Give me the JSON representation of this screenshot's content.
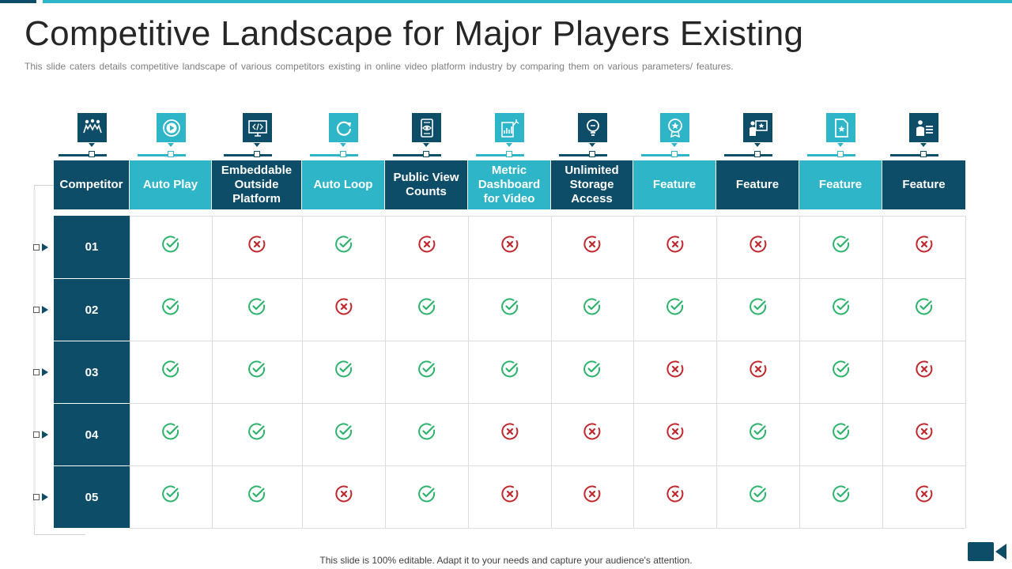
{
  "slide": {
    "title": "Competitive Landscape for Major Players Existing",
    "subtitle": "This slide caters details competitive landscape of various  competitors existing in online video platform industry by comparing them on various parameters/ features.",
    "footer": "This slide is 100% editable. Adapt it to your needs and capture your audience's attention."
  },
  "colors": {
    "dark": "#0e4d68",
    "teal": "#2fb5c8",
    "check": "#2db36b",
    "cross": "#c0282d"
  },
  "table": {
    "headers": [
      {
        "label": "Competitor",
        "icon": "team-icon",
        "tone": "dark"
      },
      {
        "label": "Auto Play",
        "icon": "play-circle-icon",
        "tone": "teal"
      },
      {
        "label": "Embeddable Outside Platform",
        "icon": "code-monitor-icon",
        "tone": "dark"
      },
      {
        "label": "Auto Loop",
        "icon": "refresh-icon",
        "tone": "teal"
      },
      {
        "label": "Public View Counts",
        "icon": "eye-document-icon",
        "tone": "dark"
      },
      {
        "label": "Metric Dashboard for Video",
        "icon": "dashboard-chart-icon",
        "tone": "teal"
      },
      {
        "label": "Unlimited Storage Access",
        "icon": "bulb-storage-icon",
        "tone": "dark"
      },
      {
        "label": "Feature",
        "icon": "badge-award-icon",
        "tone": "teal"
      },
      {
        "label": "Feature",
        "icon": "presentation-star-icon",
        "tone": "dark"
      },
      {
        "label": "Feature",
        "icon": "star-document-icon",
        "tone": "teal"
      },
      {
        "label": "Feature",
        "icon": "person-list-icon",
        "tone": "dark"
      }
    ],
    "rows": [
      {
        "label": "01",
        "values": [
          true,
          false,
          true,
          false,
          false,
          false,
          false,
          false,
          true,
          false
        ]
      },
      {
        "label": "02",
        "values": [
          true,
          true,
          false,
          true,
          true,
          true,
          true,
          true,
          true,
          true
        ]
      },
      {
        "label": "03",
        "values": [
          true,
          true,
          true,
          true,
          true,
          true,
          false,
          false,
          true,
          false
        ]
      },
      {
        "label": "04",
        "values": [
          true,
          true,
          true,
          true,
          false,
          false,
          false,
          true,
          true,
          false
        ]
      },
      {
        "label": "05",
        "values": [
          true,
          true,
          false,
          true,
          false,
          false,
          false,
          true,
          true,
          false
        ]
      }
    ]
  }
}
